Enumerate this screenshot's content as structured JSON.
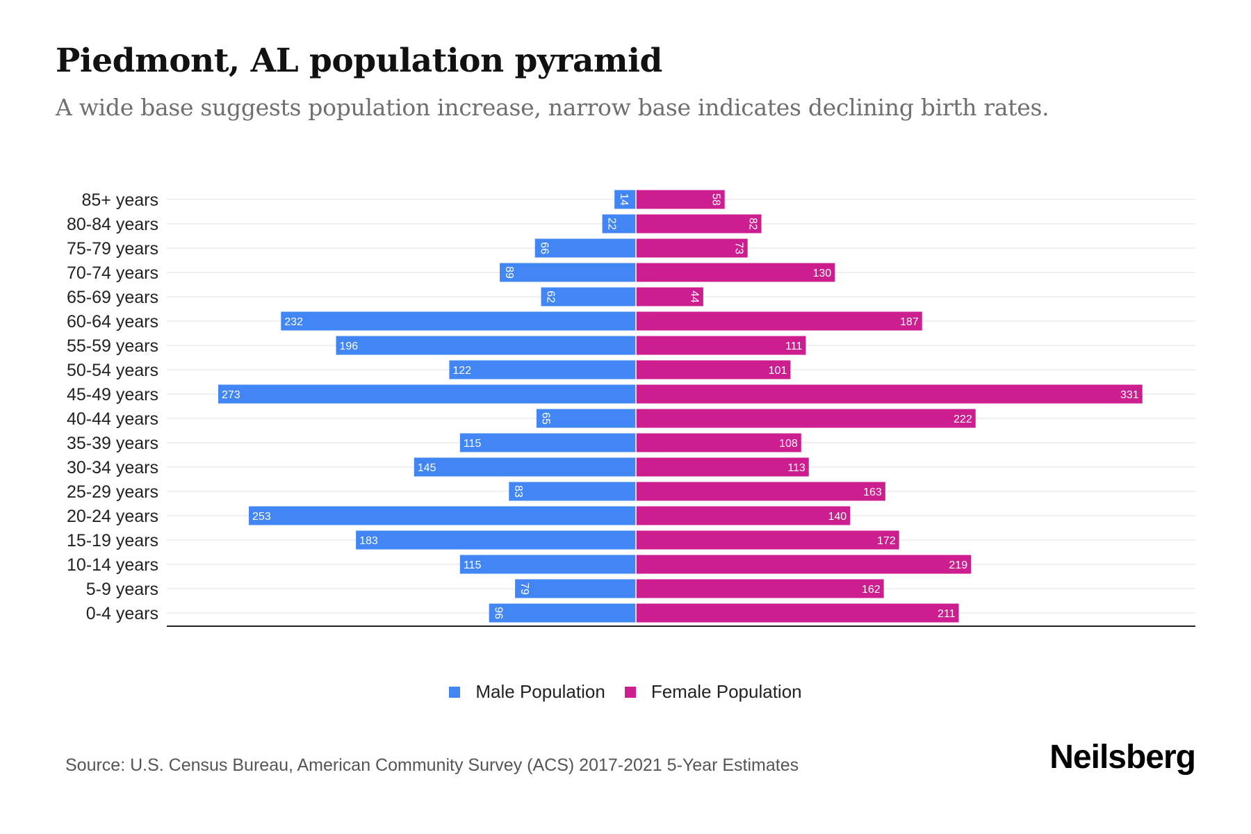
{
  "header": {
    "title": "Piedmont, AL population pyramid",
    "subtitle": "A wide base suggests population increase, narrow base indicates declining birth rates."
  },
  "footer": {
    "source": "Source: U.S. Census Bureau, American Community Survey (ACS) 2017-2021 5-Year Estimates",
    "logo": "Neilsberg"
  },
  "colors": {
    "male": "#4285f4",
    "female": "#cc1e8f",
    "grid": "#ebebeb",
    "axis": "#222222",
    "label_text": "#ffffff",
    "tick_text": "#222222"
  },
  "chart_data": {
    "type": "bar",
    "orientation": "horizontal-pyramid",
    "title": "Piedmont, AL population pyramid",
    "subtitle": "A wide base suggests population increase, narrow base indicates declining birth rates.",
    "xlabel": "",
    "ylabel": "",
    "grid": true,
    "legend_position": "bottom-center",
    "xlim": [
      -331,
      331
    ],
    "categories": [
      "85+ years",
      "80-84 years",
      "75-79 years",
      "70-74 years",
      "65-69 years",
      "60-64 years",
      "55-59 years",
      "50-54 years",
      "45-49 years",
      "40-44 years",
      "35-39 years",
      "30-34 years",
      "25-29 years",
      "20-24 years",
      "15-19 years",
      "10-14 years",
      "5-9 years",
      "0-4 years"
    ],
    "series": [
      {
        "name": "Male Population",
        "side": "left",
        "values": [
          14,
          22,
          66,
          89,
          62,
          232,
          196,
          122,
          273,
          65,
          115,
          145,
          83,
          253,
          183,
          115,
          79,
          96
        ]
      },
      {
        "name": "Female Population",
        "side": "right",
        "values": [
          58,
          82,
          73,
          130,
          44,
          187,
          111,
          101,
          331,
          222,
          108,
          113,
          163,
          140,
          172,
          219,
          162,
          211
        ]
      }
    ]
  }
}
